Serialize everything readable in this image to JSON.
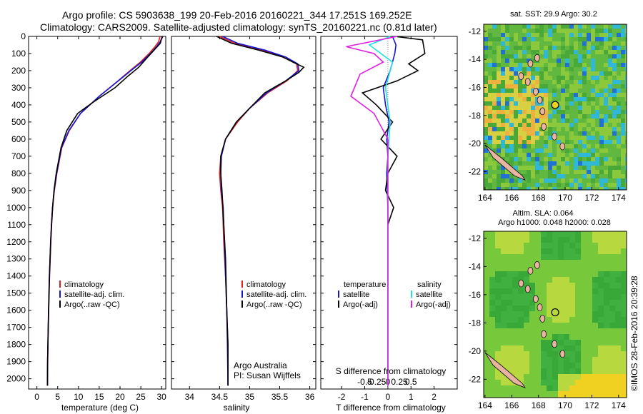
{
  "header": {
    "line1": "Argo profile: CS 5903638_199 20-Feb-2016 20160221_344 17.251S 169.252E",
    "line2": "Climatology: CARS2009. Satellite-adjusted climatology: synTS_20160221.nc (0.81d later)"
  },
  "colors": {
    "climatology": "#e02020",
    "satellite": "#1515d8",
    "argo": "#000000",
    "sal_satellite": "#20e0e0",
    "sal_argo": "#e020e0"
  },
  "chart_data": [
    {
      "type": "line",
      "name": "temperature-profile",
      "xlabel": "temperature (deg C)",
      "ylabel": "",
      "xlim": [
        -2,
        31
      ],
      "ylim": [
        2060,
        0
      ],
      "xticks": [
        0,
        5,
        10,
        15,
        20,
        25,
        30
      ],
      "yticks": [
        0,
        100,
        200,
        300,
        400,
        500,
        600,
        700,
        800,
        900,
        1000,
        1100,
        1200,
        1300,
        1400,
        1500,
        1600,
        1700,
        1800,
        1900,
        2000
      ],
      "legend": [
        "climatology",
        "satellite-adj. clim.",
        "Argo(..raw -QC)"
      ],
      "series": [
        {
          "name": "climatology",
          "color": "#e02020",
          "x": [
            29.6,
            29.3,
            28.4,
            27.0,
            24.9,
            22.4,
            19.5,
            15.0,
            10.5,
            7.8,
            6.0,
            4.8,
            4.2,
            3.8,
            3.55,
            3.35,
            3.2,
            3.05,
            2.95,
            2.85,
            2.75,
            2.65,
            2.6,
            2.55
          ],
          "y": [
            0,
            30,
            60,
            100,
            150,
            200,
            260,
            350,
            450,
            550,
            650,
            800,
            900,
            1000,
            1100,
            1200,
            1300,
            1400,
            1500,
            1600,
            1700,
            1800,
            1900,
            2040
          ]
        },
        {
          "name": "satellite",
          "color": "#1515d8",
          "x": [
            30.2,
            29.7,
            28.8,
            27.3,
            25.2,
            22.6,
            19.6,
            15.0,
            10.5,
            7.7,
            5.9,
            4.75,
            4.15,
            3.75,
            3.5,
            3.3,
            3.15,
            3.0,
            2.9,
            2.8,
            2.72,
            2.64,
            2.58,
            2.53
          ],
          "y": [
            0,
            30,
            60,
            100,
            150,
            200,
            260,
            350,
            450,
            550,
            650,
            800,
            900,
            1000,
            1100,
            1200,
            1300,
            1400,
            1500,
            1600,
            1700,
            1800,
            1900,
            2040
          ]
        },
        {
          "name": "argo",
          "color": "#000000",
          "x": [
            30.3,
            29.9,
            29.7,
            28.2,
            26.3,
            24.5,
            22.0,
            18.8,
            13.8,
            9.8,
            7.2,
            5.8,
            4.65,
            4.12,
            3.78,
            3.52,
            3.32,
            3.17,
            3.02,
            2.92,
            2.83,
            2.73,
            2.65,
            2.58,
            2.53
          ],
          "y": [
            0,
            20,
            40,
            80,
            130,
            180,
            230,
            300,
            380,
            450,
            550,
            650,
            800,
            900,
            1000,
            1100,
            1200,
            1300,
            1400,
            1500,
            1600,
            1700,
            1800,
            1900,
            2040
          ]
        }
      ]
    },
    {
      "type": "line",
      "name": "salinity-profile",
      "xlabel": "salinity",
      "ylabel": "",
      "xlim": [
        33.7,
        36.1
      ],
      "ylim": [
        2060,
        0
      ],
      "xticks": [
        34,
        34.5,
        35,
        35.5,
        36
      ],
      "legend": [
        "climatology",
        "satellite-adj. clim.",
        "Argo(..raw -QC)"
      ],
      "annotations": [
        "Argo Australia",
        "PI: Susan Wijffels"
      ],
      "series": [
        {
          "name": "climatology",
          "color": "#e02020",
          "x": [
            34.5,
            34.75,
            35.2,
            35.55,
            35.78,
            35.8,
            35.62,
            35.3,
            35.0,
            34.8,
            34.6,
            34.52,
            34.5,
            34.52,
            34.55,
            34.57,
            34.6,
            34.62,
            34.64,
            34.64
          ],
          "y": [
            0,
            40,
            80,
            120,
            160,
            200,
            260,
            330,
            420,
            500,
            600,
            700,
            800,
            900,
            1000,
            1200,
            1400,
            1600,
            1800,
            2040
          ]
        },
        {
          "name": "satellite",
          "color": "#1515d8",
          "x": [
            34.55,
            34.8,
            35.25,
            35.6,
            35.8,
            35.82,
            35.6,
            35.28,
            35.0,
            34.78,
            34.6,
            34.53,
            34.52,
            34.53,
            34.56,
            34.58,
            34.6,
            34.62,
            34.63,
            34.64
          ],
          "y": [
            0,
            40,
            80,
            120,
            160,
            200,
            260,
            330,
            420,
            500,
            600,
            700,
            800,
            900,
            1000,
            1200,
            1400,
            1600,
            1800,
            2040
          ]
        },
        {
          "name": "argo",
          "color": "#000000",
          "x": [
            34.45,
            34.7,
            35.15,
            35.55,
            35.72,
            35.9,
            35.82,
            35.6,
            35.25,
            35.0,
            34.78,
            34.6,
            34.52,
            34.52,
            34.54,
            34.57,
            34.6,
            34.62,
            34.64,
            34.64
          ],
          "y": [
            0,
            40,
            80,
            120,
            150,
            180,
            210,
            260,
            330,
            420,
            500,
            600,
            700,
            800,
            900,
            1100,
            1300,
            1600,
            1800,
            2040
          ]
        }
      ]
    },
    {
      "type": "line",
      "name": "difference-profile",
      "xlabel": "T difference from climatology",
      "xlabel_top": "S difference from climatology",
      "ylabel": "",
      "xlim": [
        -2.9,
        3.0
      ],
      "ylim": [
        2060,
        0
      ],
      "xticks": [
        -2,
        -1,
        0,
        1,
        2
      ],
      "xticks_s": [
        -0.5,
        -0.25,
        0,
        0.25,
        0.5
      ],
      "legend": [
        "temperature",
        "satellite",
        "Argo(-adj)",
        "salinity",
        "satellite",
        "Argo(-adj)"
      ],
      "series": [
        {
          "name": "T satellite",
          "color": "#1515d8",
          "x": [
            0.2,
            0.35,
            0.3,
            0.1,
            -0.2,
            -0.1,
            0.05,
            -0.05,
            0.0,
            -0.05,
            0.0,
            0.0,
            0.0,
            0.0
          ],
          "y": [
            0,
            50,
            100,
            200,
            300,
            400,
            500,
            600,
            700,
            800,
            1000,
            1400,
            1800,
            2040
          ]
        },
        {
          "name": "T argo",
          "color": "#000000",
          "x": [
            0.3,
            1.5,
            1.6,
            0.9,
            1.3,
            0.4,
            -1.1,
            -0.5,
            0.2,
            -0.3,
            0.4,
            0.0,
            -0.1,
            0.25,
            0.0
          ],
          "y": [
            0,
            20,
            100,
            160,
            200,
            260,
            330,
            400,
            500,
            600,
            700,
            800,
            900,
            1000,
            1100
          ]
        },
        {
          "name": "S satellite",
          "color": "#20e0e0",
          "x": [
            0.05,
            -0.4,
            -0.15,
            0.1,
            -0.05,
            0.05,
            0.0,
            0.0,
            0.0,
            0.0
          ],
          "y": [
            0,
            50,
            100,
            150,
            300,
            500,
            700,
            1000,
            1500,
            2040
          ]
        },
        {
          "name": "S argo",
          "color": "#e020e0",
          "x": [
            0.2,
            -0.9,
            -0.3,
            -0.1,
            -0.6,
            -0.8,
            -0.3,
            0.0,
            0.0,
            0.0
          ],
          "y": [
            0,
            60,
            100,
            150,
            220,
            350,
            450,
            600,
            800,
            2040
          ]
        }
      ]
    },
    {
      "type": "heatmap",
      "name": "sst-map",
      "title": "sat. SST: 29.9  Argo: 30.2",
      "xticks": [
        164,
        166,
        168,
        170,
        172,
        174
      ],
      "yticks": [
        -12,
        -14,
        -16,
        -18,
        -20,
        -22
      ],
      "xlim": [
        163.9,
        174.6
      ],
      "ylim": [
        -23.3,
        -11.5
      ],
      "argo_position": {
        "lon": 169.252,
        "lat": -17.251
      }
    },
    {
      "type": "heatmap",
      "name": "sla-map",
      "title": "Altim. SLA: 0.064",
      "subtitle": "Argo h1000: 0.048 h2000: 0.028",
      "xticks": [
        164,
        166,
        168,
        170,
        172,
        174
      ],
      "yticks": [
        -12,
        -14,
        -16,
        -18,
        -20,
        -22
      ],
      "xlim": [
        163.9,
        174.6
      ],
      "ylim": [
        -23.3,
        -11.5
      ],
      "argo_position": {
        "lon": 169.252,
        "lat": -17.251
      }
    }
  ],
  "footer": {
    "credit": "©IMOS 28-Feb-2016 20:39:28"
  }
}
